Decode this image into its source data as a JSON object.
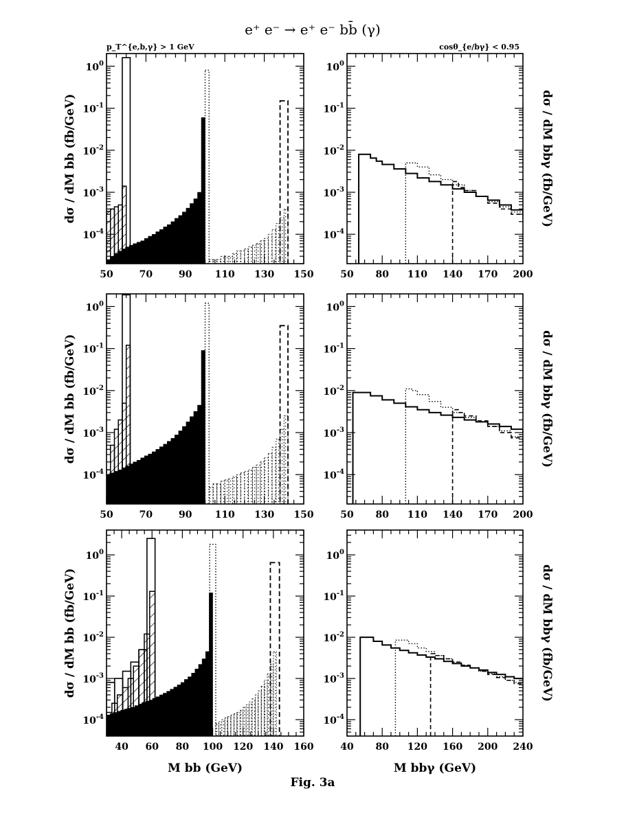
{
  "title": "e⁺ e⁻ → e⁺ e⁻ bb̄ (γ)",
  "cut_left": "p_T^{e,b,γ} > 1 GeV",
  "cut_right": "cosθ_{e/bγ} < 0.95",
  "caption": "Fig. 3a",
  "chart_data": [
    {
      "type": "bar",
      "panel": "top-left",
      "ylabel": "dσ / dM_bb (fb/GeV)",
      "xlabel": "",
      "xlim": [
        50,
        150
      ],
      "ylim": [
        2e-05,
        2
      ],
      "log_y": true,
      "xticks": [
        50,
        70,
        90,
        110,
        130,
        150
      ],
      "yticks": [
        "10^-4",
        "10^-3",
        "10^-2",
        "10^-1",
        "10^0"
      ],
      "series": [
        {
          "style": "solid-filled",
          "x_range": [
            50,
            100
          ],
          "values": [
            2.5e-05,
            3e-05,
            3.5e-05,
            4e-05,
            4.5e-05,
            5e-05,
            5.5e-05,
            6e-05,
            6.5e-05,
            7e-05,
            8e-05,
            9e-05,
            0.0001,
            0.000115,
            0.00013,
            0.00015,
            0.00017,
            0.0002,
            0.00024,
            0.00028,
            0.00034,
            0.00042,
            0.00054,
            0.0007,
            0.001,
            0.06
          ]
        },
        {
          "style": "hatched",
          "x_range": [
            50,
            60
          ],
          "values": [
            0.00035,
            0.0004,
            0.00045,
            0.0005,
            0.0014
          ]
        },
        {
          "style": "open-solid",
          "x_range": [
            58,
            62
          ],
          "values": [
            1.6
          ]
        },
        {
          "style": "dotted",
          "x_range": [
            100,
            102
          ],
          "values": [
            0.8
          ]
        },
        {
          "style": "dotted-shaded",
          "x_range": [
            102,
            142
          ],
          "values": [
            2.5e-05,
            2.5e-05,
            2.5e-05,
            3e-05,
            3e-05,
            3e-05,
            3.5e-05,
            4e-05,
            4e-05,
            4.5e-05,
            5e-05,
            5.5e-05,
            6e-05,
            7e-05,
            8e-05,
            0.0001,
            0.00013,
            0.00018,
            0.00025,
            0.0004
          ]
        },
        {
          "style": "dashed",
          "x_range": [
            138,
            142
          ],
          "values": [
            0.15
          ]
        }
      ]
    },
    {
      "type": "line",
      "panel": "top-right",
      "ylabel": "dσ / dM_bbγ (fb/GeV)",
      "xlabel": "",
      "xlim": [
        50,
        200
      ],
      "ylim": [
        2e-05,
        2
      ],
      "log_y": true,
      "xticks": [
        50,
        80,
        110,
        140,
        170,
        200
      ],
      "yticks": [
        "10^-4",
        "10^-3",
        "10^-2",
        "10^-1",
        "10^0"
      ],
      "series": [
        {
          "style": "solid",
          "x": [
            60,
            65,
            70,
            75,
            80,
            90,
            100,
            110,
            120,
            130,
            140,
            150,
            160,
            170,
            180,
            190,
            200
          ],
          "y": [
            0.008,
            0.008,
            0.0065,
            0.0055,
            0.0046,
            0.0036,
            0.0028,
            0.0022,
            0.0018,
            0.0015,
            0.0012,
            0.001,
            0.0008,
            0.00065,
            0.0005,
            0.00038,
            0.0003
          ]
        },
        {
          "style": "dotted",
          "x": [
            100,
            105,
            110,
            120,
            130,
            140,
            150,
            160,
            170,
            180,
            190,
            200
          ],
          "y": [
            0.005,
            0.005,
            0.004,
            0.0026,
            0.002,
            0.0015,
            0.0011,
            0.0008,
            0.0006,
            0.00045,
            0.00034,
            0.00025
          ]
        },
        {
          "style": "dashed",
          "x": [
            140,
            145,
            150,
            160,
            170,
            180,
            190,
            200
          ],
          "y": [
            0.0018,
            0.0013,
            0.0011,
            0.0008,
            0.00055,
            0.0004,
            0.0003,
            0.0002
          ]
        }
      ]
    },
    {
      "type": "bar",
      "panel": "middle-left",
      "ylabel": "dσ / dM_bb (fb/GeV)",
      "xlabel": "",
      "xlim": [
        50,
        150
      ],
      "ylim": [
        2e-05,
        2
      ],
      "log_y": true,
      "xticks": [
        50,
        70,
        90,
        110,
        130,
        150
      ],
      "yticks": [
        "10^-4",
        "10^-3",
        "10^-2",
        "10^-1",
        "10^0"
      ],
      "series": [
        {
          "style": "solid-filled",
          "x_range": [
            50,
            100
          ],
          "values": [
            0.0001,
            0.00011,
            0.00012,
            0.00013,
            0.000145,
            0.00016,
            0.00018,
            0.0002,
            0.00022,
            0.00025,
            0.00028,
            0.00031,
            0.00035,
            0.0004,
            0.00046,
            0.00053,
            0.00062,
            0.00073,
            0.00088,
            0.0011,
            0.0014,
            0.0018,
            0.0024,
            0.0032,
            0.0045,
            0.09
          ]
        },
        {
          "style": "hatched",
          "x_range": [
            50,
            62
          ],
          "values": [
            0.00013,
            0.0005,
            0.0012,
            0.002,
            0.005,
            0.12
          ]
        },
        {
          "style": "open-solid",
          "x_range": [
            58,
            62
          ],
          "values": [
            1.9
          ]
        },
        {
          "style": "dotted",
          "x_range": [
            100,
            102
          ],
          "values": [
            1.2
          ]
        },
        {
          "style": "dotted-shaded",
          "x_range": [
            102,
            142
          ],
          "values": [
            5e-05,
            6e-05,
            6e-05,
            7e-05,
            7.5e-05,
            8e-05,
            9e-05,
            0.0001,
            0.00011,
            0.00012,
            0.00013,
            0.00015,
            0.00017,
            0.0002,
            0.00025,
            0.00032,
            0.00045,
            0.0007,
            0.0012,
            0.0025
          ]
        },
        {
          "style": "dashed",
          "x_range": [
            138,
            142
          ],
          "values": [
            0.35
          ]
        }
      ]
    },
    {
      "type": "line",
      "panel": "middle-right",
      "ylabel": "dσ / dM_bbγ (fb/GeV)",
      "xlabel": "",
      "xlim": [
        50,
        200
      ],
      "ylim": [
        2e-05,
        2
      ],
      "log_y": true,
      "xticks": [
        50,
        80,
        110,
        140,
        170,
        200
      ],
      "yticks": [
        "10^-4",
        "10^-3",
        "10^-2",
        "10^-1",
        "10^0"
      ],
      "series": [
        {
          "style": "solid",
          "x": [
            55,
            60,
            70,
            80,
            90,
            100,
            110,
            120,
            130,
            140,
            150,
            160,
            170,
            180,
            190,
            200
          ],
          "y": [
            0.009,
            0.009,
            0.0075,
            0.006,
            0.005,
            0.0041,
            0.0035,
            0.003,
            0.0026,
            0.0023,
            0.002,
            0.0018,
            0.0016,
            0.0014,
            0.0012,
            0.001
          ]
        },
        {
          "style": "dotted",
          "x": [
            100,
            105,
            110,
            120,
            130,
            140,
            150,
            160,
            170,
            180,
            190,
            200
          ],
          "y": [
            0.011,
            0.01,
            0.008,
            0.0055,
            0.004,
            0.003,
            0.0023,
            0.0018,
            0.0014,
            0.0011,
            0.0008,
            0.0006
          ]
        },
        {
          "style": "dashed",
          "x": [
            140,
            145,
            150,
            160,
            170,
            180,
            190,
            200
          ],
          "y": [
            0.0035,
            0.003,
            0.0025,
            0.0019,
            0.0014,
            0.001,
            0.00075,
            0.0005
          ]
        }
      ]
    },
    {
      "type": "bar",
      "panel": "bottom-left",
      "ylabel": "dσ / dM_bb (fb/GeV)",
      "xlabel": "M_bb (GeV)",
      "xlim": [
        30,
        160
      ],
      "ylim": [
        4e-05,
        4
      ],
      "log_y": true,
      "xticks": [
        40,
        60,
        80,
        100,
        120,
        140,
        160
      ],
      "yticks": [
        "10^-4",
        "10^-3",
        "10^-2",
        "10^-1",
        "10^0"
      ],
      "series": [
        {
          "style": "solid-filled",
          "x_range": [
            30,
            100
          ],
          "values": [
            0.00013,
            0.00014,
            0.00015,
            0.00016,
            0.00017,
            0.00018,
            0.00019,
            0.0002,
            0.00022,
            0.00024,
            0.00026,
            0.00028,
            0.0003,
            0.00033,
            0.00036,
            0.0004,
            0.00044,
            0.00049,
            0.00055,
            0.00062,
            0.0007,
            0.0008,
            0.00095,
            0.0011,
            0.00135,
            0.0017,
            0.0022,
            0.003,
            0.0045,
            0.12
          ]
        },
        {
          "style": "hatched",
          "x_range": [
            30,
            62
          ],
          "values": [
            0.00015,
            0.00025,
            0.0004,
            0.0006,
            0.001,
            0.002,
            0.005,
            0.012,
            0.13
          ]
        },
        {
          "style": "open-solid",
          "x_range": [
            30,
            62
          ],
          "values": [
            0.0008,
            0.001,
            0.0015,
            0.0025,
            0.005,
            2.5
          ]
        },
        {
          "style": "dotted",
          "x_range": [
            98,
            102
          ],
          "values": [
            1.8
          ]
        },
        {
          "style": "dotted-shaded",
          "x_range": [
            102,
            142
          ],
          "values": [
            8e-05,
            9e-05,
            0.0001,
            0.00011,
            0.00012,
            0.00013,
            0.00014,
            0.00015,
            0.00017,
            0.0002,
            0.00023,
            0.00027,
            0.00032,
            0.0004,
            0.0005,
            0.00065,
            0.0009,
            0.0013,
            0.0022,
            0.0045
          ]
        },
        {
          "style": "dashed",
          "x_range": [
            138,
            144
          ],
          "values": [
            0.65
          ]
        }
      ]
    },
    {
      "type": "line",
      "panel": "bottom-right",
      "ylabel": "dσ / dM_bbγ (fb/GeV)",
      "xlabel": "M_bbγ (GeV)",
      "xlim": [
        40,
        240
      ],
      "ylim": [
        4e-05,
        4
      ],
      "log_y": true,
      "xticks": [
        40,
        80,
        120,
        160,
        200,
        240
      ],
      "yticks": [
        "10^-4",
        "10^-3",
        "10^-2",
        "10^-1",
        "10^0"
      ],
      "series": [
        {
          "style": "solid",
          "x": [
            55,
            60,
            70,
            80,
            90,
            100,
            110,
            120,
            130,
            140,
            150,
            160,
            170,
            180,
            190,
            200,
            210,
            220,
            230,
            240
          ],
          "y": [
            0.01,
            0.01,
            0.008,
            0.0065,
            0.0055,
            0.0048,
            0.0042,
            0.0037,
            0.0033,
            0.003,
            0.0026,
            0.0023,
            0.002,
            0.0018,
            0.0016,
            0.0014,
            0.00125,
            0.0011,
            0.001,
            0.0009
          ]
        },
        {
          "style": "dotted",
          "x": [
            95,
            100,
            110,
            120,
            130,
            140,
            150,
            160,
            170,
            180,
            190,
            200,
            210,
            220,
            230,
            240
          ],
          "y": [
            0.0085,
            0.0085,
            0.007,
            0.0055,
            0.0045,
            0.0036,
            0.003,
            0.0025,
            0.0021,
            0.0018,
            0.0015,
            0.0013,
            0.0011,
            0.0009,
            0.0008,
            0.0007
          ]
        },
        {
          "style": "dashed",
          "x": [
            135,
            140,
            150,
            160,
            170,
            180,
            190,
            200,
            210,
            220,
            230,
            240
          ],
          "y": [
            0.004,
            0.0036,
            0.003,
            0.0025,
            0.0021,
            0.0018,
            0.0015,
            0.00125,
            0.00105,
            0.0009,
            0.00075,
            0.00065
          ]
        }
      ]
    }
  ]
}
